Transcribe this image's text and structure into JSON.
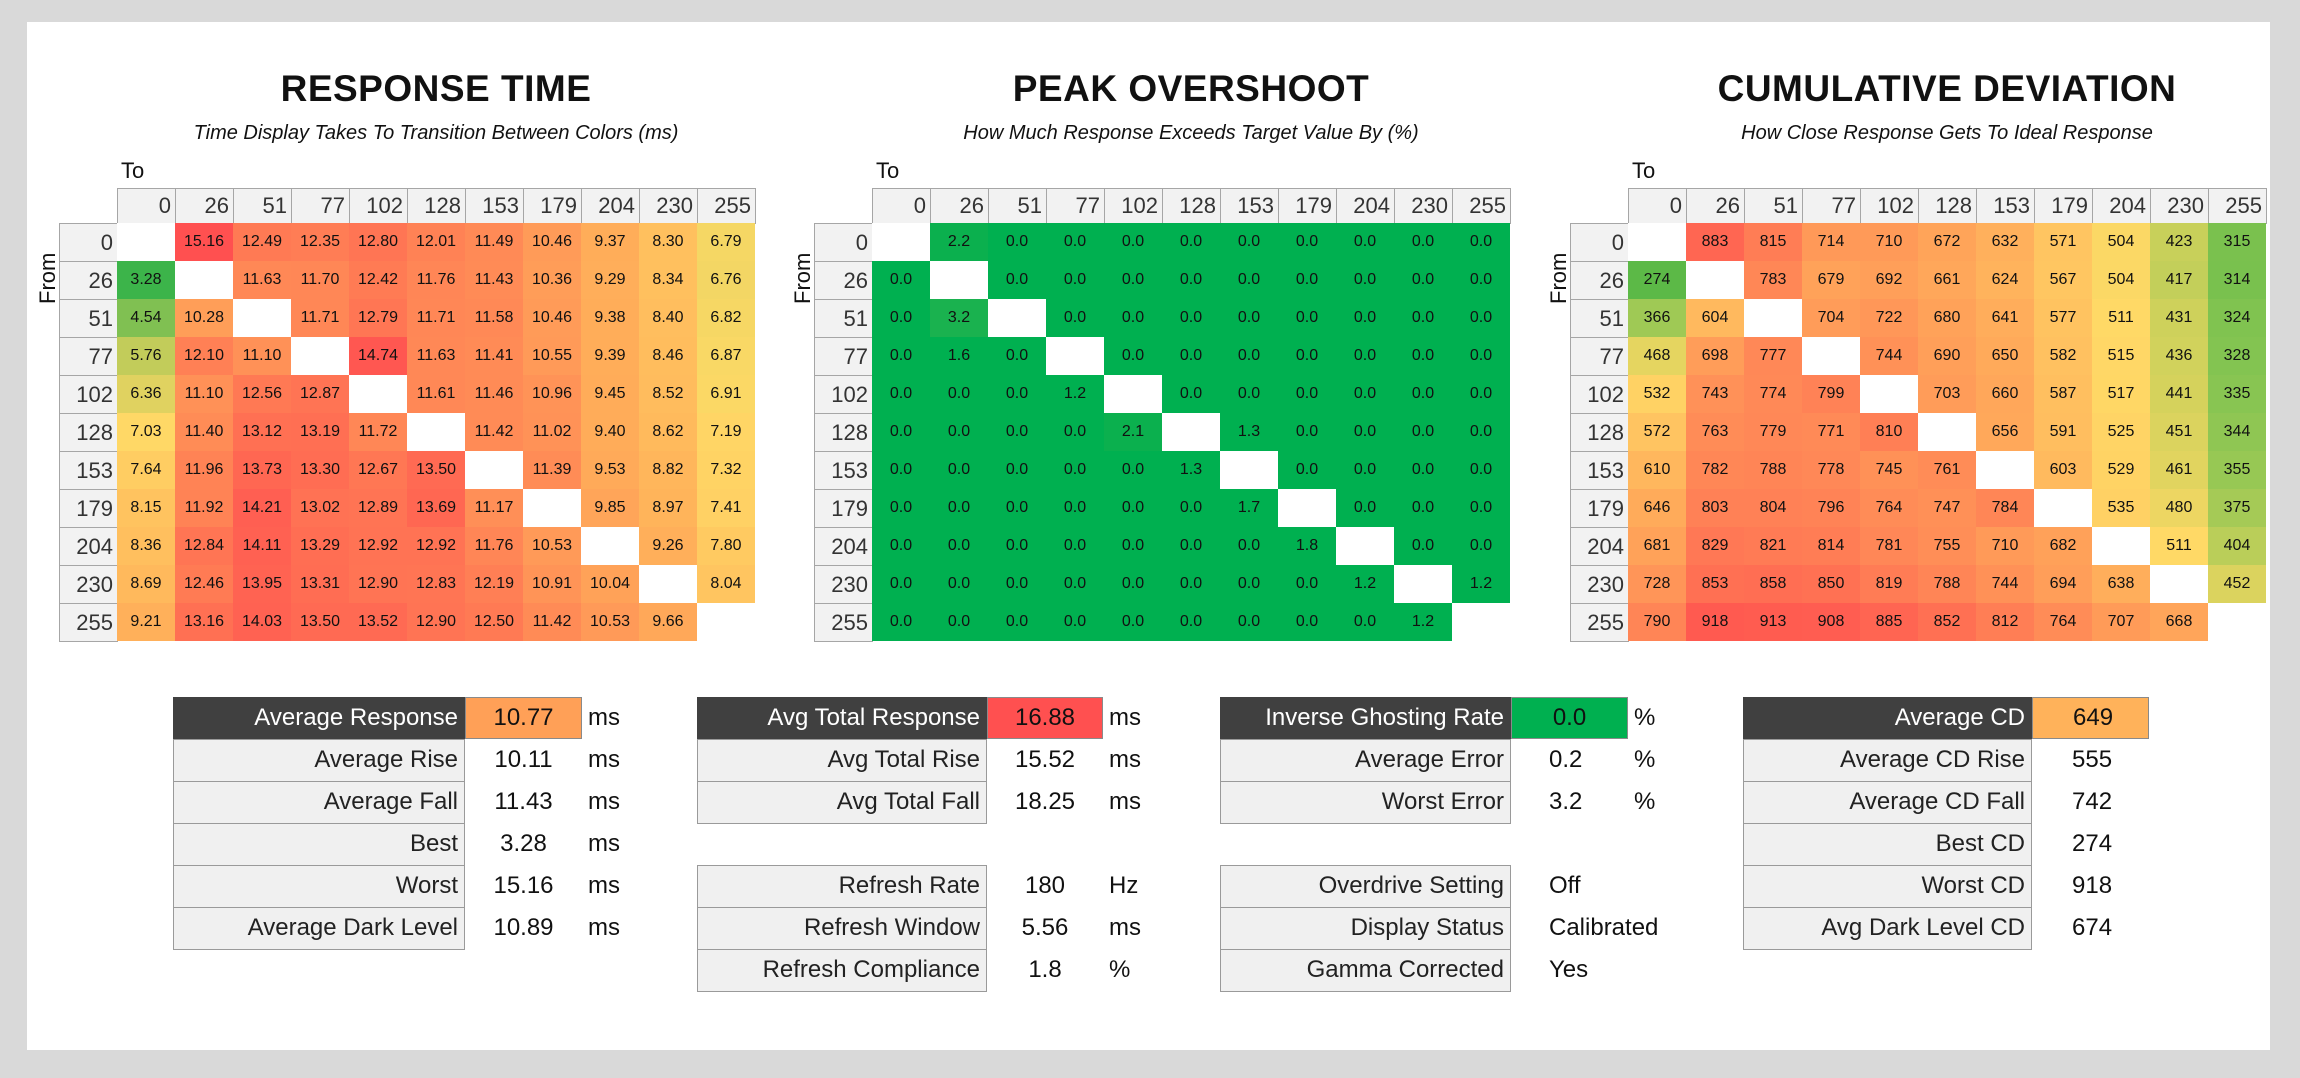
{
  "colors": {
    "overshoot_green": "#00b050",
    "highlight_orange": "#ffa057",
    "highlight_red": "#ff5050",
    "highlight_green": "#00b050",
    "highlight_cd": "#ffb25a"
  },
  "chart_data": [
    {
      "type": "heatmap",
      "title": "RESPONSE TIME",
      "subtitle": "Time Display Takes To Transition Between Colors (ms)",
      "xlabel": "To",
      "ylabel": "From",
      "categories": [
        "0",
        "26",
        "51",
        "77",
        "102",
        "128",
        "153",
        "179",
        "204",
        "230",
        "255"
      ],
      "values": [
        [
          null,
          "15.16",
          "12.49",
          "12.35",
          "12.80",
          "12.01",
          "11.49",
          "10.46",
          "9.37",
          "8.30",
          "6.79"
        ],
        [
          "3.28",
          null,
          "11.63",
          "11.70",
          "12.42",
          "11.76",
          "11.43",
          "10.36",
          "9.29",
          "8.34",
          "6.76"
        ],
        [
          "4.54",
          "10.28",
          null,
          "11.71",
          "12.79",
          "11.71",
          "11.58",
          "10.46",
          "9.38",
          "8.40",
          "6.82"
        ],
        [
          "5.76",
          "12.10",
          "11.10",
          null,
          "14.74",
          "11.63",
          "11.41",
          "10.55",
          "9.39",
          "8.46",
          "6.87"
        ],
        [
          "6.36",
          "11.10",
          "12.56",
          "12.87",
          null,
          "11.61",
          "11.46",
          "10.96",
          "9.45",
          "8.52",
          "6.91"
        ],
        [
          "7.03",
          "11.40",
          "13.12",
          "13.19",
          "11.72",
          null,
          "11.42",
          "11.02",
          "9.40",
          "8.62",
          "7.19"
        ],
        [
          "7.64",
          "11.96",
          "13.73",
          "13.30",
          "12.67",
          "13.50",
          null,
          "11.39",
          "9.53",
          "8.82",
          "7.32"
        ],
        [
          "8.15",
          "11.92",
          "14.21",
          "13.02",
          "12.89",
          "13.69",
          "11.17",
          null,
          "9.85",
          "8.97",
          "7.41"
        ],
        [
          "8.36",
          "12.84",
          "14.11",
          "13.29",
          "12.92",
          "12.92",
          "11.76",
          "10.53",
          null,
          "9.26",
          "7.80"
        ],
        [
          "8.69",
          "12.46",
          "13.95",
          "13.31",
          "12.90",
          "12.83",
          "12.19",
          "10.91",
          "10.04",
          null,
          "8.04"
        ],
        [
          "9.21",
          "13.16",
          "14.03",
          "13.50",
          "13.52",
          "12.90",
          "12.50",
          "11.42",
          "10.53",
          "9.66",
          null
        ]
      ]
    },
    {
      "type": "heatmap",
      "title": "PEAK OVERSHOOT",
      "subtitle": "How Much Response Exceeds Target Value By (%)",
      "xlabel": "To",
      "ylabel": "From",
      "categories": [
        "0",
        "26",
        "51",
        "77",
        "102",
        "128",
        "153",
        "179",
        "204",
        "230",
        "255"
      ],
      "values": [
        [
          null,
          "2.2",
          "0.0",
          "0.0",
          "0.0",
          "0.0",
          "0.0",
          "0.0",
          "0.0",
          "0.0",
          "0.0"
        ],
        [
          "0.0",
          null,
          "0.0",
          "0.0",
          "0.0",
          "0.0",
          "0.0",
          "0.0",
          "0.0",
          "0.0",
          "0.0"
        ],
        [
          "0.0",
          "3.2",
          null,
          "0.0",
          "0.0",
          "0.0",
          "0.0",
          "0.0",
          "0.0",
          "0.0",
          "0.0"
        ],
        [
          "0.0",
          "1.6",
          "0.0",
          null,
          "0.0",
          "0.0",
          "0.0",
          "0.0",
          "0.0",
          "0.0",
          "0.0"
        ],
        [
          "0.0",
          "0.0",
          "0.0",
          "1.2",
          null,
          "0.0",
          "0.0",
          "0.0",
          "0.0",
          "0.0",
          "0.0"
        ],
        [
          "0.0",
          "0.0",
          "0.0",
          "0.0",
          "2.1",
          null,
          "1.3",
          "0.0",
          "0.0",
          "0.0",
          "0.0"
        ],
        [
          "0.0",
          "0.0",
          "0.0",
          "0.0",
          "0.0",
          "1.3",
          null,
          "0.0",
          "0.0",
          "0.0",
          "0.0"
        ],
        [
          "0.0",
          "0.0",
          "0.0",
          "0.0",
          "0.0",
          "0.0",
          "1.7",
          null,
          "0.0",
          "0.0",
          "0.0"
        ],
        [
          "0.0",
          "0.0",
          "0.0",
          "0.0",
          "0.0",
          "0.0",
          "0.0",
          "1.8",
          null,
          "0.0",
          "0.0"
        ],
        [
          "0.0",
          "0.0",
          "0.0",
          "0.0",
          "0.0",
          "0.0",
          "0.0",
          "0.0",
          "1.2",
          null,
          "1.2"
        ],
        [
          "0.0",
          "0.0",
          "0.0",
          "0.0",
          "0.0",
          "0.0",
          "0.0",
          "0.0",
          "0.0",
          "1.2",
          null
        ]
      ]
    },
    {
      "type": "heatmap",
      "title": "CUMULATIVE DEVIATION",
      "subtitle": "How Close Response Gets To Ideal Response",
      "xlabel": "To",
      "ylabel": "From",
      "categories": [
        "0",
        "26",
        "51",
        "77",
        "102",
        "128",
        "153",
        "179",
        "204",
        "230",
        "255"
      ],
      "values": [
        [
          null,
          "883",
          "815",
          "714",
          "710",
          "672",
          "632",
          "571",
          "504",
          "423",
          "315"
        ],
        [
          "274",
          null,
          "783",
          "679",
          "692",
          "661",
          "624",
          "567",
          "504",
          "417",
          "314"
        ],
        [
          "366",
          "604",
          null,
          "704",
          "722",
          "680",
          "641",
          "577",
          "511",
          "431",
          "324"
        ],
        [
          "468",
          "698",
          "777",
          null,
          "744",
          "690",
          "650",
          "582",
          "515",
          "436",
          "328"
        ],
        [
          "532",
          "743",
          "774",
          "799",
          null,
          "703",
          "660",
          "587",
          "517",
          "441",
          "335"
        ],
        [
          "572",
          "763",
          "779",
          "771",
          "810",
          null,
          "656",
          "591",
          "525",
          "451",
          "344"
        ],
        [
          "610",
          "782",
          "788",
          "778",
          "745",
          "761",
          null,
          "603",
          "529",
          "461",
          "355"
        ],
        [
          "646",
          "803",
          "804",
          "796",
          "764",
          "747",
          "784",
          null,
          "535",
          "480",
          "375"
        ],
        [
          "681",
          "829",
          "821",
          "814",
          "781",
          "755",
          "710",
          "682",
          null,
          "511",
          "404"
        ],
        [
          "728",
          "853",
          "858",
          "850",
          "819",
          "788",
          "744",
          "694",
          "638",
          null,
          "452"
        ],
        [
          "790",
          "918",
          "913",
          "908",
          "885",
          "852",
          "812",
          "764",
          "707",
          "668",
          null
        ]
      ]
    }
  ],
  "summary": [
    {
      "rows": [
        {
          "label": "Average Response",
          "value": "10.77",
          "unit": "ms",
          "head": true,
          "hl": "#ffa057"
        },
        {
          "label": "Average Rise",
          "value": "10.11",
          "unit": "ms"
        },
        {
          "label": "Average Fall",
          "value": "11.43",
          "unit": "ms"
        },
        {
          "label": "Best",
          "value": "3.28",
          "unit": "ms"
        },
        {
          "label": "Worst",
          "value": "15.16",
          "unit": "ms"
        },
        {
          "label": "Average Dark Level",
          "value": "10.89",
          "unit": "ms"
        }
      ]
    },
    {
      "rows": [
        {
          "label": "Avg Total Response",
          "value": "16.88",
          "unit": "ms",
          "head": true,
          "hl": "#ff5050"
        },
        {
          "label": "Avg Total Rise",
          "value": "15.52",
          "unit": "ms"
        },
        {
          "label": "Avg Total Fall",
          "value": "18.25",
          "unit": "ms"
        },
        null,
        {
          "label": "Refresh Rate",
          "value": "180",
          "unit": "Hz"
        },
        {
          "label": "Refresh Window",
          "value": "5.56",
          "unit": "ms"
        },
        {
          "label": "Refresh Compliance",
          "value": "1.8",
          "unit": "%"
        }
      ]
    },
    {
      "rows": [
        {
          "label": "Inverse Ghosting Rate",
          "value": "0.0",
          "unit": "%",
          "head": true,
          "hl": "#00b050"
        },
        {
          "label": "Average Error",
          "value": "0.2",
          "unit": "%"
        },
        {
          "label": "Worst Error",
          "value": "3.2",
          "unit": "%"
        },
        null,
        {
          "label": "Overdrive Setting",
          "value": "Off",
          "unit": ""
        },
        {
          "label": "Display Status",
          "value": "Calibrated",
          "unit": ""
        },
        {
          "label": "Gamma Corrected",
          "value": "Yes",
          "unit": ""
        }
      ]
    },
    {
      "rows": [
        {
          "label": "Average CD",
          "value": "649",
          "unit": "",
          "head": true,
          "hl": "#ffb25a"
        },
        {
          "label": "Average CD Rise",
          "value": "555",
          "unit": ""
        },
        {
          "label": "Average CD Fall",
          "value": "742",
          "unit": ""
        },
        {
          "label": "Best CD",
          "value": "274",
          "unit": ""
        },
        {
          "label": "Worst CD",
          "value": "918",
          "unit": ""
        },
        {
          "label": "Avg Dark Level CD",
          "value": "674",
          "unit": ""
        }
      ]
    }
  ]
}
